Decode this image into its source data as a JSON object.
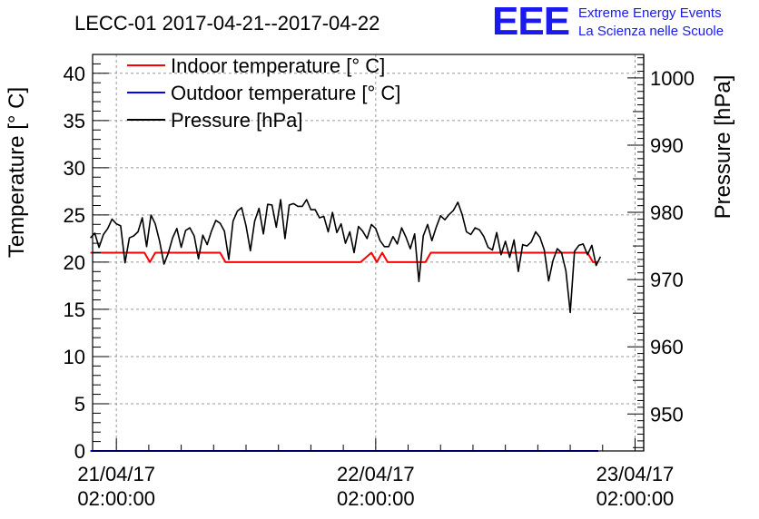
{
  "chart_data": {
    "type": "line",
    "title": "LECC-01 2017-04-21--2017-04-22",
    "ylabel": "Temperature [° C]",
    "y2label": "Pressure [hPa]",
    "ylim": [
      0,
      42
    ],
    "y2lim": [
      944.5,
      1003.5
    ],
    "xlim_hours": [
      -2.2,
      48.8
    ],
    "yticks": [
      0,
      5,
      10,
      15,
      20,
      25,
      30,
      35,
      40
    ],
    "y2ticks": [
      950,
      960,
      970,
      980,
      990,
      1000
    ],
    "xticks": [
      {
        "hour": 0,
        "date": "21/04/17",
        "time": "02:00:00"
      },
      {
        "hour": 24,
        "date": "22/04/17",
        "time": "02:00:00"
      },
      {
        "hour": 48,
        "date": "23/04/17",
        "time": "02:00:00"
      }
    ],
    "grid": true,
    "legend_position": "top-left",
    "logo": {
      "mark": "EEE",
      "line1": "Extreme Energy Events",
      "line2": "La Scienza nelle Scuole"
    },
    "series": [
      {
        "name": "Indoor temperature [° C]",
        "color": "#ff0000",
        "axis": "left",
        "x": [
          -2.4,
          2.6,
          3.1,
          3.6,
          9.6,
          10.1,
          22.6,
          23.6,
          24.1,
          24.6,
          25.1,
          25.6,
          28.6,
          29.1,
          43.6,
          44.1,
          44.6
        ],
        "y": [
          21,
          21,
          20,
          21,
          21,
          20,
          20,
          21,
          20,
          21,
          20,
          20,
          20,
          21,
          21,
          20,
          20
        ]
      },
      {
        "name": "Outdoor temperature [° C]",
        "color": "#0000ff",
        "axis": "left",
        "x": [
          -2.4,
          44.6
        ],
        "y": [
          0,
          0
        ]
      },
      {
        "name": "Pressure [hPa]",
        "color": "#000000",
        "axis": "right",
        "x": [
          -2.4,
          -2.0,
          -1.6,
          -1.2,
          -0.8,
          -0.4,
          0.0,
          0.4,
          0.8,
          1.2,
          1.6,
          2.0,
          2.4,
          2.8,
          3.2,
          3.6,
          4.0,
          4.4,
          4.8,
          5.2,
          5.6,
          6.0,
          6.4,
          6.8,
          7.2,
          7.6,
          8.0,
          8.4,
          8.8,
          9.2,
          9.6,
          10.0,
          10.4,
          10.8,
          11.2,
          11.6,
          12.0,
          12.4,
          12.8,
          13.2,
          13.6,
          14.0,
          14.4,
          14.8,
          15.2,
          15.6,
          16.0,
          16.4,
          16.8,
          17.2,
          17.6,
          18.0,
          18.4,
          18.8,
          19.2,
          19.6,
          20.0,
          20.4,
          20.8,
          21.2,
          21.6,
          22.0,
          22.4,
          22.8,
          23.2,
          23.6,
          24.0,
          24.4,
          24.8,
          25.2,
          25.6,
          26.0,
          26.4,
          26.8,
          27.2,
          27.6,
          28.0,
          28.4,
          28.8,
          29.2,
          29.6,
          30.0,
          30.4,
          30.8,
          31.2,
          31.6,
          32.0,
          32.4,
          32.8,
          33.2,
          33.6,
          34.0,
          34.4,
          34.8,
          35.2,
          35.6,
          36.0,
          36.4,
          36.8,
          37.2,
          37.6,
          38.0,
          38.4,
          38.8,
          39.2,
          39.6,
          40.0,
          40.4,
          40.8,
          41.2,
          41.6,
          42.0,
          42.4,
          42.8,
          43.2,
          43.6,
          44.0,
          44.4,
          44.8
        ],
        "y": [
          976.2,
          976.9,
          974.8,
          976.7,
          977.6,
          979.0,
          978.3,
          978.0,
          972.5,
          976.2,
          976.5,
          977.1,
          979.2,
          974.9,
          979.6,
          978.3,
          975.7,
          972.3,
          973.9,
          976.2,
          977.6,
          974.8,
          977.3,
          977.7,
          976.5,
          973.1,
          976.6,
          975.2,
          977.2,
          978.8,
          978.4,
          977.2,
          973.0,
          978.7,
          980.2,
          980.7,
          978.0,
          974.3,
          978.7,
          980.6,
          976.8,
          981.2,
          981.1,
          977.8,
          981.9,
          976.1,
          981.1,
          981.3,
          980.9,
          980.9,
          981.9,
          980.4,
          980.4,
          979.2,
          979.4,
          977.1,
          980.0,
          977.0,
          978.3,
          975.4,
          977.1,
          974.0,
          977.9,
          977.2,
          976.1,
          978.2,
          977.6,
          975.8,
          974.9,
          974.9,
          976.4,
          975.3,
          977.7,
          976.3,
          974.6,
          976.8,
          969.7,
          976.5,
          978.2,
          975.8,
          977.8,
          979.5,
          978.9,
          979.7,
          980.3,
          981.5,
          979.7,
          977.1,
          976.7,
          977.7,
          977.4,
          976.4,
          974.8,
          974.4,
          977.0,
          973.7,
          975.7,
          973.3,
          975.9,
          971.2,
          975.2,
          975.0,
          975.6,
          977.1,
          976.3,
          974.4,
          969.8,
          972.8,
          974.6,
          974.0,
          971.3,
          965.1,
          974.2,
          975.1,
          975.3,
          973.7,
          975.1,
          972.1,
          973.4
        ]
      }
    ]
  }
}
